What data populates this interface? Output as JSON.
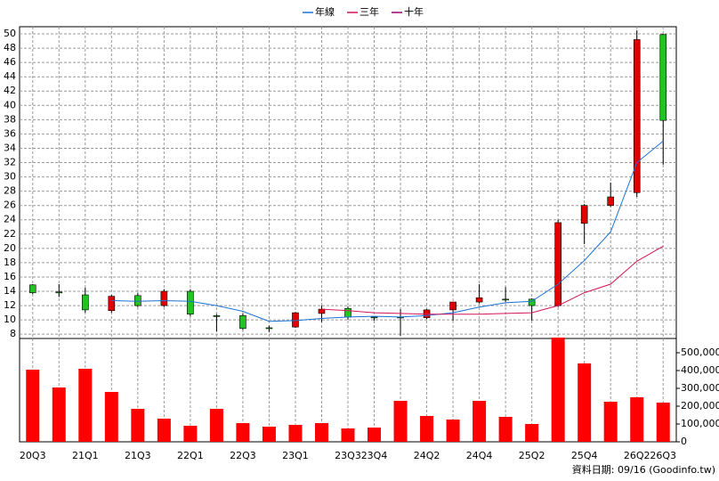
{
  "chart_data": {
    "type": "candlestick",
    "categories": [
      "20Q3",
      null,
      "21Q1",
      null,
      "21Q3",
      null,
      "22Q1",
      null,
      "22Q3",
      null,
      "23Q1",
      null,
      "23Q3",
      "23Q4",
      null,
      "24Q2",
      null,
      "24Q4",
      null,
      "25Q2",
      null,
      "25Q4",
      null,
      "26Q2",
      "26Q3"
    ],
    "open": [
      14.9,
      13.9,
      13.5,
      11.3,
      13.4,
      12.0,
      14.0,
      10.6,
      10.6,
      8.9,
      9.0,
      10.9,
      11.6,
      10.4,
      10.4,
      10.3,
      11.4,
      12.5,
      12.9,
      12.9,
      12.0,
      23.5,
      26.0,
      27.8,
      49.9
    ],
    "high": [
      15.0,
      15.0,
      14.5,
      13.5,
      13.8,
      14.3,
      14.3,
      10.8,
      10.9,
      9.2,
      11.1,
      12.0,
      11.9,
      10.5,
      11.5,
      11.5,
      12.5,
      15.0,
      14.6,
      13.0,
      24.0,
      26.2,
      29.2,
      50.5,
      50.0
    ],
    "low": [
      13.6,
      13.2,
      11.0,
      11.0,
      11.8,
      11.8,
      10.5,
      8.4,
      8.6,
      8.3,
      8.9,
      9.7,
      10.0,
      9.9,
      7.8,
      10.1,
      9.9,
      12.3,
      12.5,
      9.9,
      11.8,
      20.6,
      25.8,
      27.2,
      31.7
    ],
    "close": [
      13.8,
      13.8,
      11.4,
      13.3,
      12.0,
      14.0,
      10.8,
      10.5,
      8.8,
      8.8,
      11.0,
      11.5,
      10.4,
      10.3,
      10.3,
      11.4,
      12.5,
      13.1,
      12.8,
      12.0,
      23.6,
      26.0,
      27.2,
      49.2,
      37.9
    ],
    "up_color": "#e00000",
    "down_color": "#22c322",
    "ylim": [
      7.4,
      51
    ],
    "yticks": [
      8,
      10,
      12,
      14,
      16,
      18,
      20,
      22,
      24,
      26,
      28,
      30,
      32,
      34,
      36,
      38,
      40,
      42,
      44,
      46,
      48,
      50
    ],
    "grid": true,
    "legend": "top",
    "series": [
      {
        "name": "年線",
        "color": "#1a72d6",
        "values": [
          null,
          null,
          null,
          12.7,
          12.6,
          12.7,
          12.6,
          12.0,
          11.2,
          9.8,
          9.9,
          10.2,
          10.4,
          10.5,
          10.4,
          10.6,
          11.0,
          11.8,
          12.4,
          12.6,
          15.0,
          18.3,
          22.3,
          32.0,
          35.0
        ]
      },
      {
        "name": "三年",
        "color": "#d4145a",
        "values": [
          null,
          null,
          null,
          null,
          null,
          null,
          null,
          null,
          null,
          null,
          null,
          11.5,
          11.3,
          11.0,
          10.9,
          10.8,
          10.8,
          10.8,
          10.9,
          11.0,
          12.0,
          13.8,
          15.0,
          18.2,
          20.3
        ]
      },
      {
        "name": "十年",
        "color": "#a0006a",
        "values": [
          null,
          null,
          null,
          null,
          null,
          null,
          null,
          null,
          null,
          null,
          null,
          null,
          null,
          null,
          null,
          null,
          null,
          null,
          null,
          null,
          null,
          null,
          null,
          null,
          null
        ]
      }
    ],
    "volume": {
      "color": "#ff0000",
      "values": [
        405000,
        305000,
        410000,
        280000,
        185000,
        130000,
        90000,
        185000,
        105000,
        85000,
        95000,
        105000,
        75000,
        80000,
        230000,
        145000,
        125000,
        230000,
        140000,
        100000,
        585000,
        440000,
        225000,
        250000,
        220000
      ],
      "ylim": [
        0,
        590000
      ],
      "yticks": [
        0,
        {
          "value": 100000,
          "label": "100,000"
        },
        {
          "value": 200000,
          "label": "200,000"
        },
        {
          "value": 300000,
          "label": "300,000"
        },
        {
          "value": 400000,
          "label": "400,000"
        },
        {
          "value": 500000,
          "label": "500,000"
        }
      ]
    },
    "note": "資料日期: 09/16 (Goodinfo.tw)"
  }
}
